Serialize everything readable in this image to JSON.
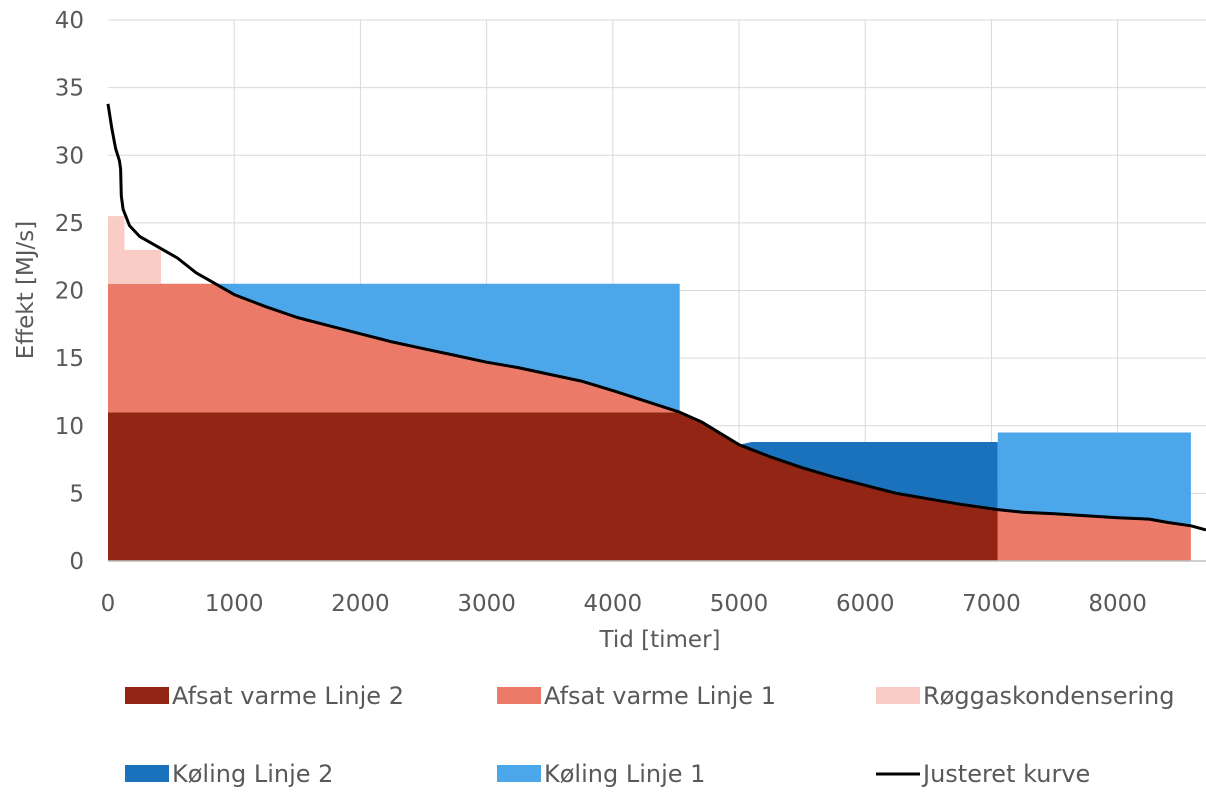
{
  "chart_data": {
    "type": "area",
    "xlabel": "Tid [timer]",
    "ylabel": "Effekt [MJ/s]",
    "xlim": [
      0,
      8700
    ],
    "ylim": [
      0,
      40
    ],
    "x_ticks": [
      0,
      1000,
      2000,
      3000,
      4000,
      5000,
      6000,
      7000,
      8000
    ],
    "y_ticks": [
      0,
      5,
      10,
      15,
      20,
      25,
      30,
      35,
      40
    ],
    "grid": true,
    "legend_position": "bottom",
    "series": [
      {
        "name": "Afsat varme Linje 2",
        "color": "#922514",
        "polygon": [
          [
            0,
            0
          ],
          [
            0,
            11
          ],
          [
            4530,
            11
          ],
          [
            4700,
            10.3
          ],
          [
            5000,
            8.6
          ],
          [
            5500,
            6.9
          ],
          [
            6000,
            5.6
          ],
          [
            6500,
            4.6
          ],
          [
            7050,
            3.8
          ],
          [
            7050,
            0
          ]
        ]
      },
      {
        "name": "Afsat varme Linje 1",
        "color": "#EC7A68",
        "polygon": [
          [
            0,
            11
          ],
          [
            0,
            20.5
          ],
          [
            850,
            20.5
          ],
          [
            1000,
            19.7
          ],
          [
            1500,
            18.0
          ],
          [
            2000,
            16.8
          ],
          [
            2500,
            15.7
          ],
          [
            3000,
            14.7
          ],
          [
            3500,
            13.8
          ],
          [
            4000,
            12.6
          ],
          [
            4300,
            11.7
          ],
          [
            4530,
            11
          ],
          [
            0,
            11
          ]
        ],
        "polygon_2": [
          [
            7050,
            0
          ],
          [
            7050,
            3.8
          ],
          [
            7500,
            3.5
          ],
          [
            8000,
            3.2
          ],
          [
            8300,
            3.0
          ],
          [
            8580,
            2.6
          ],
          [
            8580,
            0
          ]
        ]
      },
      {
        "name": "Røggaskondensering",
        "color": "#F9CCC5",
        "polygon": [
          [
            0,
            20.5
          ],
          [
            0,
            25.5
          ],
          [
            130,
            25.5
          ],
          [
            130,
            23
          ],
          [
            420,
            23
          ],
          [
            420,
            20.5
          ]
        ]
      },
      {
        "name": "Køling Linje 2",
        "color": "#1A72BC",
        "polygon": [
          [
            5000,
            8.6
          ],
          [
            5100,
            8.8
          ],
          [
            7050,
            8.8
          ],
          [
            7050,
            3.8
          ],
          [
            6500,
            4.6
          ],
          [
            6000,
            5.6
          ],
          [
            5500,
            6.9
          ]
        ]
      },
      {
        "name": "Køling Linje 1",
        "color": "#4BA6EA",
        "polygon": [
          [
            850,
            20.5
          ],
          [
            4530,
            20.5
          ],
          [
            4530,
            11
          ],
          [
            4300,
            11.7
          ],
          [
            4000,
            12.6
          ],
          [
            3500,
            13.8
          ],
          [
            3000,
            14.7
          ],
          [
            2500,
            15.7
          ],
          [
            2000,
            16.8
          ],
          [
            1500,
            18.0
          ],
          [
            1000,
            19.7
          ]
        ],
        "polygon_2": [
          [
            7050,
            3.8
          ],
          [
            7050,
            9.5
          ],
          [
            8580,
            9.5
          ],
          [
            8580,
            2.6
          ],
          [
            8300,
            3.0
          ],
          [
            8000,
            3.2
          ],
          [
            7500,
            3.5
          ]
        ]
      },
      {
        "name": "Justeret kurve",
        "color": "#000000",
        "type": "line",
        "points": [
          [
            0,
            33.8
          ],
          [
            30,
            32
          ],
          [
            60,
            30.5
          ],
          [
            90,
            29.6
          ],
          [
            100,
            29
          ],
          [
            105,
            27
          ],
          [
            120,
            26
          ],
          [
            170,
            24.8
          ],
          [
            250,
            24
          ],
          [
            400,
            23.2
          ],
          [
            550,
            22.4
          ],
          [
            700,
            21.3
          ],
          [
            850,
            20.5
          ],
          [
            1000,
            19.7
          ],
          [
            1250,
            18.8
          ],
          [
            1500,
            18.0
          ],
          [
            1750,
            17.4
          ],
          [
            2000,
            16.8
          ],
          [
            2250,
            16.2
          ],
          [
            2500,
            15.7
          ],
          [
            2750,
            15.2
          ],
          [
            3000,
            14.7
          ],
          [
            3250,
            14.3
          ],
          [
            3500,
            13.8
          ],
          [
            3750,
            13.3
          ],
          [
            4000,
            12.6
          ],
          [
            4300,
            11.7
          ],
          [
            4530,
            11
          ],
          [
            4700,
            10.3
          ],
          [
            5000,
            8.6
          ],
          [
            5250,
            7.7
          ],
          [
            5500,
            6.9
          ],
          [
            5750,
            6.2
          ],
          [
            6000,
            5.6
          ],
          [
            6250,
            5.0
          ],
          [
            6500,
            4.6
          ],
          [
            6750,
            4.2
          ],
          [
            7050,
            3.8
          ],
          [
            7250,
            3.6
          ],
          [
            7500,
            3.5
          ],
          [
            7750,
            3.35
          ],
          [
            8000,
            3.2
          ],
          [
            8250,
            3.1
          ],
          [
            8400,
            2.85
          ],
          [
            8580,
            2.6
          ],
          [
            8700,
            2.3
          ]
        ]
      }
    ]
  }
}
